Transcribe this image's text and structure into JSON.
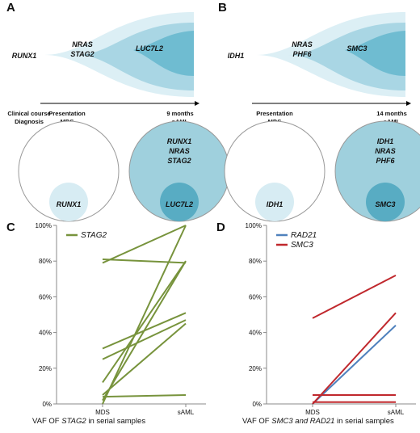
{
  "fish_panels": [
    {
      "letter": "A",
      "clones": [
        "RUNX1",
        "NRAS",
        "STAG2",
        "LUC7L2"
      ],
      "timeline": {
        "course": "Clinical course",
        "diagnosis": "Diagnosis",
        "t1": "Presentation",
        "t1_label": "MDS",
        "t2": "9 months",
        "t2_label": "sAML"
      },
      "circle_left": {
        "inner": "RUNX1"
      },
      "circle_right": {
        "outer": [
          "RUNX1",
          "NRAS",
          "STAG2"
        ],
        "inner": "LUC7L2"
      }
    },
    {
      "letter": "B",
      "clones": [
        "IDH1",
        "NRAS",
        "PHF6",
        "SMC3"
      ],
      "timeline": {
        "t1": "Presentation",
        "t1_label": "MDS",
        "t2": "14 months",
        "t2_label": "sAML"
      },
      "circle_left": {
        "inner": "IDH1"
      },
      "circle_right": {
        "outer": [
          "IDH1",
          "NRAS",
          "PHF6"
        ],
        "inner": "SMC3"
      }
    }
  ],
  "chart_data": [
    {
      "type": "line",
      "letter": "C",
      "categories": [
        "MDS",
        "sAML"
      ],
      "xlabel": [
        "VAF OF ",
        "STAG2",
        " in serial samples"
      ],
      "ylim": [
        0,
        100
      ],
      "yticks": [
        {
          "value": 0,
          "label": "0%"
        },
        {
          "value": 20,
          "label": "20%"
        },
        {
          "value": 40,
          "label": "40%"
        },
        {
          "value": 60,
          "label": "60%"
        },
        {
          "value": 80,
          "label": "80%"
        },
        {
          "value": 100,
          "label": "100%"
        }
      ],
      "series": [
        {
          "name": "STAG2",
          "color": "#77933c",
          "lines": [
            [
              79,
              100
            ],
            [
              81,
              79
            ],
            [
              0,
              100
            ],
            [
              2,
              80
            ],
            [
              31,
              51
            ],
            [
              25,
              47
            ],
            [
              12,
              80
            ],
            [
              5,
              45
            ],
            [
              4,
              5
            ]
          ]
        }
      ]
    },
    {
      "type": "line",
      "letter": "D",
      "categories": [
        "MDS",
        "sAML"
      ],
      "xlabel": [
        "VAF OF ",
        "SMC3 and RAD21",
        " in serial samples"
      ],
      "ylim": [
        0,
        100
      ],
      "yticks": [
        {
          "value": 0,
          "label": "0%"
        },
        {
          "value": 20,
          "label": "20%"
        },
        {
          "value": 40,
          "label": "40%"
        },
        {
          "value": 60,
          "label": "60%"
        },
        {
          "value": 80,
          "label": "80%"
        },
        {
          "value": 100,
          "label": "100%"
        }
      ],
      "series": [
        {
          "name": "RAD21",
          "color": "#4f81bd",
          "lines": [
            [
              0,
              44
            ]
          ]
        },
        {
          "name": "SMC3",
          "color": "#c0282d",
          "lines": [
            [
              48,
              72
            ],
            [
              0,
              51
            ],
            [
              5,
              5
            ],
            [
              1,
              1
            ]
          ]
        }
      ]
    }
  ]
}
